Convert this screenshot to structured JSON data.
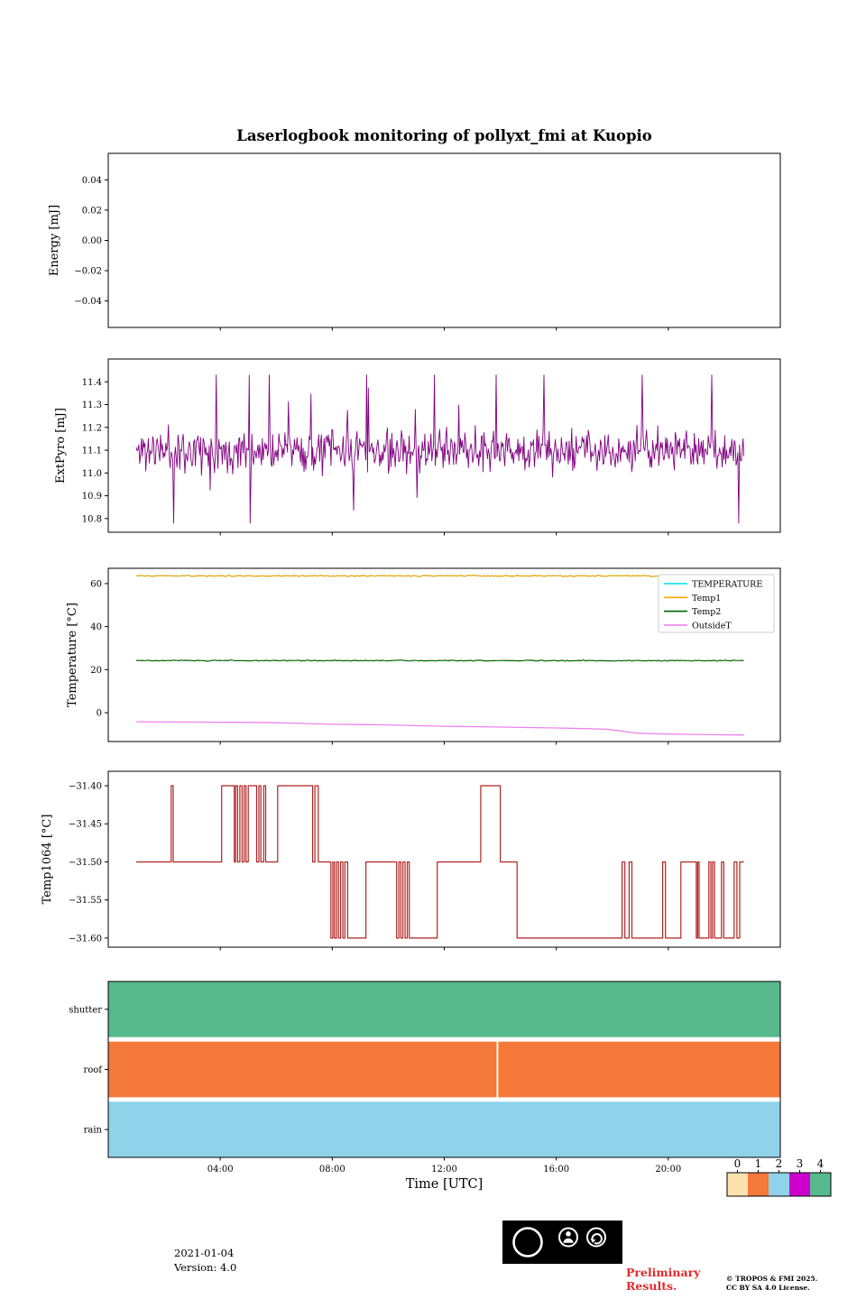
{
  "title": "Laserlogbook monitoring of pollyxt_fmi at Kuopio",
  "xlabel": "Time [UTC]",
  "x_range": [
    0,
    24
  ],
  "xticks": [
    [
      4,
      "04:00"
    ],
    [
      8,
      "08:00"
    ],
    [
      12,
      "12:00"
    ],
    [
      16,
      "16:00"
    ],
    [
      20,
      "20:00"
    ]
  ],
  "colorbar": {
    "ticks": [
      "0",
      "1",
      "2",
      "3",
      "4"
    ],
    "colors": [
      "#fde2b0",
      "#f4793b",
      "#8fd2ea",
      "#cc00cc",
      "#57b98e"
    ]
  },
  "footer": {
    "date": "2021-01-04",
    "version": "Version: 4.0",
    "preliminary": [
      "Preliminary",
      "Results."
    ],
    "copyright": [
      "© TROPOS & FMI 2025.",
      "CC BY SA 4.0 License."
    ],
    "cc": {
      "cc": "CC",
      "by": "BY",
      "sa": "SA"
    }
  },
  "chart_data": [
    {
      "type": "line",
      "ylabel": "Energy [mJ]",
      "ylim": [
        -0.0575,
        0.0575
      ],
      "yticks": [
        [
          0.04,
          "0.04"
        ],
        [
          0.02,
          "0.02"
        ],
        [
          0,
          "0.00"
        ],
        [
          -0.02,
          "−0.02"
        ],
        [
          -0.04,
          "−0.04"
        ]
      ],
      "series": []
    },
    {
      "type": "line",
      "ylabel": "ExtPyro [mJ]",
      "ylim": [
        10.74,
        11.5
      ],
      "yticks": [
        [
          11.4,
          "11.4"
        ],
        [
          11.3,
          "11.3"
        ],
        [
          11.2,
          "11.2"
        ],
        [
          11.1,
          "11.1"
        ],
        [
          11.0,
          "11.0"
        ],
        [
          10.9,
          "10.9"
        ],
        [
          10.8,
          "10.8"
        ]
      ],
      "series": [
        {
          "name": "ExtPyro",
          "color": "#800080",
          "width": 0.9,
          "gen": {
            "seed": 11,
            "points": 700,
            "x_start": 1.0,
            "x_end": 22.7,
            "mean": 11.1,
            "std": 0.045,
            "spike_prob": 0.035,
            "spike_amp": 0.6,
            "clamp": [
              10.78,
              11.43
            ]
          }
        }
      ]
    },
    {
      "type": "line",
      "ylabel": "Temperature [°C]",
      "ylim": [
        -13.4,
        67.1
      ],
      "yticks": [
        [
          60,
          "60"
        ],
        [
          40,
          "40"
        ],
        [
          20,
          "20"
        ],
        [
          0,
          "0"
        ]
      ],
      "legend": {
        "entries": [
          {
            "label": "TEMPERATURE",
            "color": "#00dfe6"
          },
          {
            "label": "Temp1",
            "color": "#ffa500"
          },
          {
            "label": "Temp2",
            "color": "#006400"
          },
          {
            "label": "OutsideT",
            "color": "#ee82ee"
          }
        ]
      },
      "series": [
        {
          "name": "TEMPERATURE",
          "color": "#00dfe6",
          "width": 1.2,
          "gen": {
            "seed": 5,
            "points": 300,
            "x_start": 1.0,
            "x_end": 22.7,
            "mean": 63.6,
            "std": 0.15,
            "spike_prob": 0,
            "spike_amp": 0,
            "clamp": [
              63.0,
              64.2
            ]
          }
        },
        {
          "name": "Temp1",
          "color": "#ffa500",
          "width": 1.2,
          "gen": {
            "seed": 5,
            "points": 300,
            "x_start": 1.0,
            "x_end": 22.7,
            "mean": 63.6,
            "std": 0.15,
            "spike_prob": 0,
            "spike_amp": 0,
            "clamp": [
              63.0,
              64.2
            ]
          }
        },
        {
          "name": "Temp2",
          "color": "#006400",
          "width": 1.2,
          "gen": {
            "seed": 9,
            "points": 300,
            "x_start": 1.0,
            "x_end": 22.7,
            "mean": 24.2,
            "std": 0.12,
            "spike_prob": 0,
            "spike_amp": 0,
            "clamp": [
              23.6,
              24.8
            ]
          }
        },
        {
          "name": "OutsideT",
          "color": "#ee82ee",
          "width": 1.3,
          "points": [
            [
              1.0,
              -4.2
            ],
            [
              3.0,
              -4.4
            ],
            [
              5.0,
              -4.5
            ],
            [
              6.0,
              -4.7
            ],
            [
              7.0,
              -5.0
            ],
            [
              8.0,
              -5.4
            ],
            [
              9.0,
              -5.5
            ],
            [
              10.0,
              -5.7
            ],
            [
              11.0,
              -6.0
            ],
            [
              12.0,
              -6.3
            ],
            [
              13.0,
              -6.5
            ],
            [
              14.0,
              -6.7
            ],
            [
              15.0,
              -6.9
            ],
            [
              16.0,
              -7.1
            ],
            [
              17.0,
              -7.4
            ],
            [
              17.8,
              -7.7
            ],
            [
              18.3,
              -8.5
            ],
            [
              18.8,
              -9.4
            ],
            [
              19.3,
              -9.7
            ],
            [
              20.0,
              -9.9
            ],
            [
              21.0,
              -10.1
            ],
            [
              22.0,
              -10.3
            ],
            [
              22.7,
              -10.4
            ]
          ]
        }
      ]
    },
    {
      "type": "step",
      "ylabel": "Temp1064 [°C]",
      "ylim": [
        -31.612,
        -31.381
      ],
      "yticks": [
        [
          -31.4,
          "−31.40"
        ],
        [
          -31.45,
          "−31.45"
        ],
        [
          -31.5,
          "−31.50"
        ],
        [
          -31.55,
          "−31.55"
        ],
        [
          -31.6,
          "−31.60"
        ]
      ],
      "series": [
        {
          "name": "Temp1064",
          "color": "#b22222",
          "width": 1.2,
          "end": 22.7,
          "steps": [
            [
              1.0,
              -31.5
            ],
            [
              2.25,
              -31.4
            ],
            [
              2.32,
              -31.5
            ],
            [
              4.05,
              -31.4
            ],
            [
              4.5,
              -31.5
            ],
            [
              4.55,
              -31.4
            ],
            [
              4.62,
              -31.5
            ],
            [
              4.7,
              -31.4
            ],
            [
              4.78,
              -31.5
            ],
            [
              4.85,
              -31.4
            ],
            [
              4.92,
              -31.5
            ],
            [
              5.0,
              -31.4
            ],
            [
              5.3,
              -31.5
            ],
            [
              5.38,
              -31.4
            ],
            [
              5.45,
              -31.5
            ],
            [
              5.55,
              -31.4
            ],
            [
              5.62,
              -31.5
            ],
            [
              6.05,
              -31.4
            ],
            [
              7.3,
              -31.5
            ],
            [
              7.38,
              -31.4
            ],
            [
              7.5,
              -31.5
            ],
            [
              7.95,
              -31.6
            ],
            [
              8.02,
              -31.5
            ],
            [
              8.08,
              -31.6
            ],
            [
              8.15,
              -31.5
            ],
            [
              8.22,
              -31.6
            ],
            [
              8.3,
              -31.5
            ],
            [
              8.38,
              -31.6
            ],
            [
              8.45,
              -31.5
            ],
            [
              8.55,
              -31.6
            ],
            [
              9.2,
              -31.5
            ],
            [
              10.3,
              -31.6
            ],
            [
              10.38,
              -31.5
            ],
            [
              10.45,
              -31.6
            ],
            [
              10.52,
              -31.5
            ],
            [
              10.6,
              -31.6
            ],
            [
              10.68,
              -31.5
            ],
            [
              10.75,
              -31.6
            ],
            [
              11.75,
              -31.5
            ],
            [
              13.3,
              -31.4
            ],
            [
              14.0,
              -31.5
            ],
            [
              14.6,
              -31.6
            ],
            [
              18.35,
              -31.5
            ],
            [
              18.45,
              -31.6
            ],
            [
              18.6,
              -31.5
            ],
            [
              18.7,
              -31.6
            ],
            [
              19.8,
              -31.5
            ],
            [
              19.9,
              -31.6
            ],
            [
              20.45,
              -31.5
            ],
            [
              21.0,
              -31.6
            ],
            [
              21.05,
              -31.5
            ],
            [
              21.1,
              -31.6
            ],
            [
              21.45,
              -31.5
            ],
            [
              21.52,
              -31.6
            ],
            [
              21.58,
              -31.5
            ],
            [
              21.65,
              -31.6
            ],
            [
              21.9,
              -31.5
            ],
            [
              21.98,
              -31.6
            ],
            [
              22.35,
              -31.5
            ],
            [
              22.45,
              -31.6
            ],
            [
              22.55,
              -31.5
            ]
          ]
        }
      ]
    },
    {
      "type": "status",
      "ylabel": "",
      "rows": [
        {
          "label": "shutter",
          "value": 4,
          "color": "#57b98e",
          "segments": [
            [
              0,
              24
            ]
          ]
        },
        {
          "label": "roof",
          "value": 1,
          "color": "#f4793b",
          "segments": [
            [
              0,
              13.87
            ],
            [
              13.93,
              24
            ]
          ]
        },
        {
          "label": "rain",
          "value": 2,
          "color": "#8fd2ea",
          "segments": [
            [
              0,
              24
            ]
          ]
        }
      ]
    }
  ]
}
